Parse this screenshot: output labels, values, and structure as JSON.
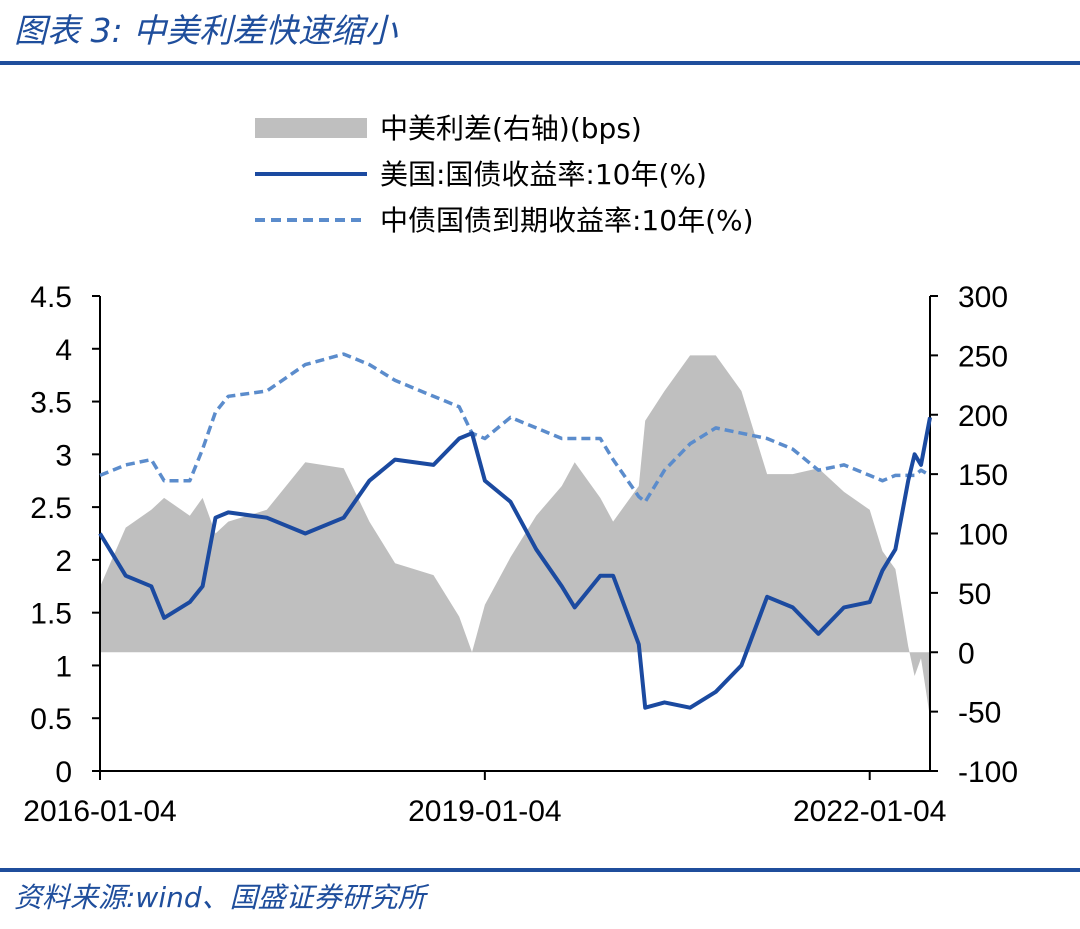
{
  "header": {
    "title": "图表 3:  中美利差快速缩小"
  },
  "footer": {
    "source": "资料来源:wind、国盛证券研究所"
  },
  "chart_data": {
    "type": "line",
    "legend": [
      {
        "key": "spread",
        "label": "中美利差(右轴)(bps)",
        "style": "area",
        "color": "#bfbfbf"
      },
      {
        "key": "us10y",
        "label": "美国:国债收益率:10年(%)",
        "style": "solid",
        "color": "#1b4aa0"
      },
      {
        "key": "cn10y",
        "label": "中债国债到期收益率:10年(%)",
        "style": "dashed",
        "color": "#5b8ccc"
      }
    ],
    "x_ticks": [
      "2016-01-04",
      "2019-01-04",
      "2022-01-04"
    ],
    "x_tick_years": [
      2016.0,
      2019.0,
      2022.0
    ],
    "x_range": [
      2016.0,
      2022.47
    ],
    "left_axis": {
      "ticks": [
        "0",
        "0.5",
        "1",
        "1.5",
        "2",
        "2.5",
        "3",
        "3.5",
        "4",
        "4.5"
      ],
      "range": [
        0,
        4.5
      ]
    },
    "right_axis": {
      "ticks": [
        "-100",
        "-50",
        "0",
        "50",
        "100",
        "150",
        "200",
        "250",
        "300"
      ],
      "range": [
        -100,
        300
      ]
    },
    "x_years": [
      2016.0,
      2016.2,
      2016.4,
      2016.5,
      2016.7,
      2016.8,
      2016.9,
      2017.0,
      2017.3,
      2017.6,
      2017.9,
      2018.1,
      2018.3,
      2018.6,
      2018.8,
      2018.9,
      2019.0,
      2019.2,
      2019.4,
      2019.6,
      2019.7,
      2019.9,
      2020.0,
      2020.2,
      2020.25,
      2020.4,
      2020.6,
      2020.8,
      2021.0,
      2021.2,
      2021.4,
      2021.6,
      2021.8,
      2022.0,
      2022.1,
      2022.2,
      2022.3,
      2022.35,
      2022.4,
      2022.47
    ],
    "series": [
      {
        "name": "美国:国债收益率:10年(%)",
        "values": [
          2.25,
          1.85,
          1.75,
          1.45,
          1.6,
          1.75,
          2.4,
          2.45,
          2.4,
          2.25,
          2.4,
          2.75,
          2.95,
          2.9,
          3.15,
          3.2,
          2.75,
          2.55,
          2.1,
          1.75,
          1.55,
          1.85,
          1.85,
          1.2,
          0.6,
          0.65,
          0.6,
          0.75,
          1.0,
          1.65,
          1.55,
          1.3,
          1.55,
          1.6,
          1.9,
          2.1,
          2.75,
          3.0,
          2.9,
          3.35
        ]
      },
      {
        "name": "中债国债到期收益率:10年(%)",
        "values": [
          2.8,
          2.9,
          2.95,
          2.75,
          2.75,
          3.05,
          3.4,
          3.55,
          3.6,
          3.85,
          3.95,
          3.85,
          3.7,
          3.55,
          3.45,
          3.2,
          3.15,
          3.35,
          3.25,
          3.15,
          3.15,
          3.15,
          2.95,
          2.6,
          2.55,
          2.85,
          3.1,
          3.25,
          3.2,
          3.15,
          3.05,
          2.85,
          2.9,
          2.8,
          2.75,
          2.8,
          2.8,
          2.8,
          2.85,
          2.8
        ]
      },
      {
        "name": "中美利差(右轴)(bps)",
        "values": [
          55,
          105,
          120,
          130,
          115,
          130,
          100,
          110,
          120,
          160,
          155,
          110,
          75,
          65,
          30,
          0,
          40,
          80,
          115,
          140,
          160,
          130,
          110,
          140,
          195,
          220,
          250,
          250,
          220,
          150,
          150,
          155,
          135,
          120,
          85,
          70,
          5,
          -20,
          -5,
          -55
        ]
      }
    ]
  }
}
